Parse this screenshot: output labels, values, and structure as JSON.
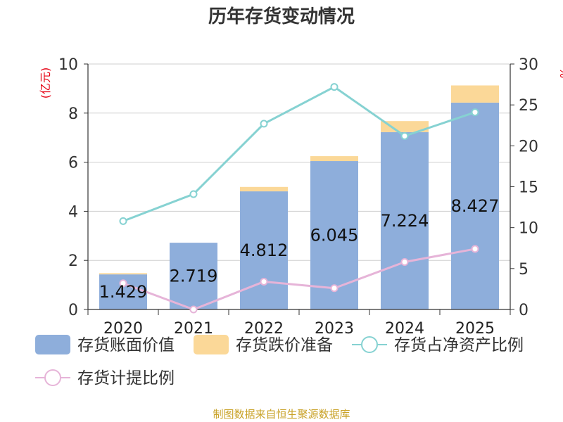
{
  "chart_data": {
    "type": "bar",
    "title": "历年存货变动情况",
    "categories": [
      "2020",
      "2021",
      "2022",
      "2023",
      "2024",
      "2025"
    ],
    "left_axis": {
      "unit_label": "(亿元)",
      "ylim": [
        0,
        10
      ],
      "ticks": [
        "0",
        "2",
        "4",
        "6",
        "8",
        "10"
      ]
    },
    "right_axis": {
      "unit_label": "%",
      "ylim": [
        0,
        30
      ],
      "ticks": [
        "0",
        "5",
        "10",
        "15",
        "20",
        "25",
        "30"
      ]
    },
    "grid": true,
    "legend_position": "bottom",
    "series": [
      {
        "name": "存货账面价值",
        "kind": "bar",
        "axis": "left",
        "stack": "inv",
        "color": "#8eaedb",
        "values": [
          1.429,
          2.719,
          4.812,
          6.045,
          7.224,
          8.427
        ],
        "labels": [
          "1.429",
          "2.719",
          "4.812",
          "6.045",
          "7.224",
          "8.427"
        ]
      },
      {
        "name": "存货跌价准备",
        "kind": "bar",
        "axis": "left",
        "stack": "inv",
        "color": "#fbd898",
        "values": [
          0.05,
          0.0,
          0.18,
          0.2,
          0.45,
          0.7
        ]
      },
      {
        "name": "存货占净资产比例",
        "kind": "line",
        "axis": "right",
        "color": "#86d2d2",
        "values": [
          10.8,
          14.1,
          22.7,
          27.2,
          21.2,
          24.1
        ]
      },
      {
        "name": "存货计提比例",
        "kind": "line",
        "axis": "right",
        "color": "#e6b4d8",
        "values": [
          3.2,
          0.0,
          3.4,
          2.6,
          5.8,
          7.4
        ]
      }
    ]
  },
  "footer": {
    "source": "制图数据来自恒生聚源数据库"
  }
}
